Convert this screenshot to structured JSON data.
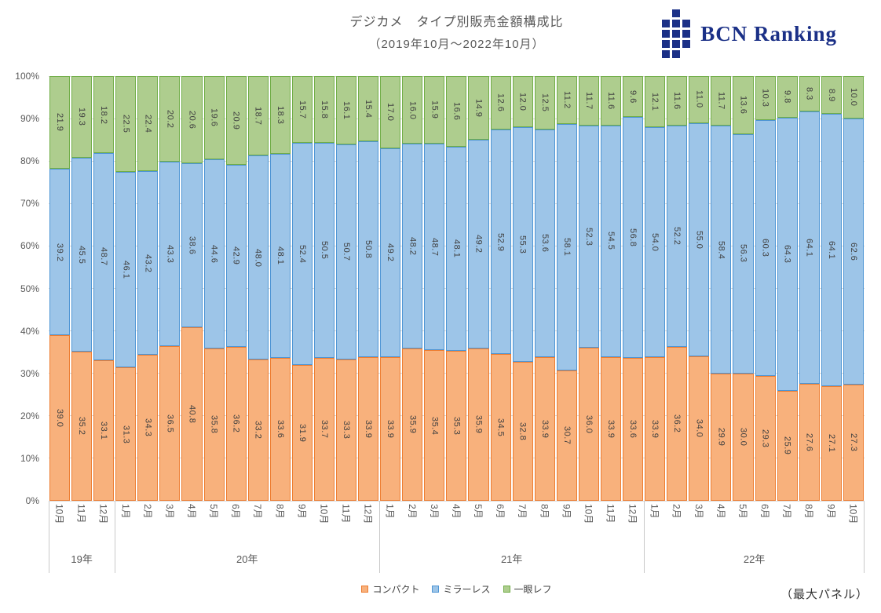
{
  "header": {
    "title": "デジカメ　タイプ別販売金額構成比",
    "subtitle": "（2019年10月～2022年10月）",
    "logo_text": "BCN Ranking",
    "logo_color": "#1B3087"
  },
  "footer": {
    "note": "（最大パネル）"
  },
  "chart_data": {
    "type": "bar",
    "stacked": true,
    "percent_stacked": true,
    "title": "デジカメ　タイプ別販売金額構成比（2019年10月～2022年10月）",
    "xlabel": "",
    "ylabel": "",
    "ylim": [
      0,
      100
    ],
    "y_tick_step": 10,
    "y_tick_suffix": "%",
    "grid": true,
    "legend_position": "bottom",
    "grid_color": "#D9D9D9",
    "categories": [
      "10月",
      "11月",
      "12月",
      "1月",
      "2月",
      "3月",
      "4月",
      "5月",
      "6月",
      "7月",
      "8月",
      "9月",
      "10月",
      "11月",
      "12月",
      "1月",
      "2月",
      "3月",
      "4月",
      "5月",
      "6月",
      "7月",
      "8月",
      "9月",
      "10月",
      "11月",
      "12月",
      "1月",
      "2月",
      "3月",
      "4月",
      "5月",
      "6月",
      "7月",
      "8月",
      "9月",
      "10月"
    ],
    "year_groups": [
      {
        "label": "19年",
        "count": 3
      },
      {
        "label": "20年",
        "count": 12
      },
      {
        "label": "21年",
        "count": 12
      },
      {
        "label": "22年",
        "count": 10
      }
    ],
    "series": [
      {
        "key": "compact",
        "name": "コンパクト",
        "fill": "#F8B17C",
        "border": "#ED7D31",
        "values": [
          39.0,
          35.2,
          33.1,
          31.3,
          34.3,
          36.5,
          40.8,
          35.8,
          36.2,
          33.2,
          33.6,
          31.9,
          33.7,
          33.3,
          33.9,
          33.9,
          35.9,
          35.4,
          35.3,
          35.9,
          34.5,
          32.8,
          33.9,
          30.7,
          36.0,
          33.9,
          33.6,
          33.9,
          36.2,
          34.0,
          29.9,
          30.0,
          29.3,
          25.9,
          27.6,
          27.1,
          27.3
        ]
      },
      {
        "key": "mirrorless",
        "name": "ミラーレス",
        "fill": "#9DC5E8",
        "border": "#4E95D4",
        "values": [
          39.2,
          45.5,
          48.7,
          46.1,
          43.2,
          43.3,
          38.6,
          44.6,
          42.9,
          48.0,
          48.1,
          52.4,
          50.5,
          50.7,
          50.8,
          49.2,
          48.2,
          48.7,
          48.1,
          49.2,
          52.9,
          55.3,
          53.6,
          58.1,
          52.3,
          54.5,
          56.8,
          54.0,
          52.2,
          55.0,
          58.4,
          56.3,
          60.3,
          64.3,
          64.1,
          64.1,
          62.6
        ]
      },
      {
        "key": "dslr",
        "name": "一眼レフ",
        "fill": "#AECD8E",
        "border": "#70AD47",
        "values": [
          21.9,
          19.3,
          18.2,
          22.5,
          22.4,
          20.2,
          20.6,
          19.6,
          20.9,
          18.7,
          18.3,
          15.7,
          15.8,
          16.1,
          15.4,
          17.0,
          16.0,
          15.9,
          16.6,
          14.9,
          12.6,
          12.0,
          12.5,
          11.2,
          11.7,
          11.6,
          9.6,
          12.1,
          11.6,
          11.0,
          11.7,
          13.6,
          10.3,
          9.8,
          8.3,
          8.9,
          10.0
        ]
      }
    ]
  }
}
